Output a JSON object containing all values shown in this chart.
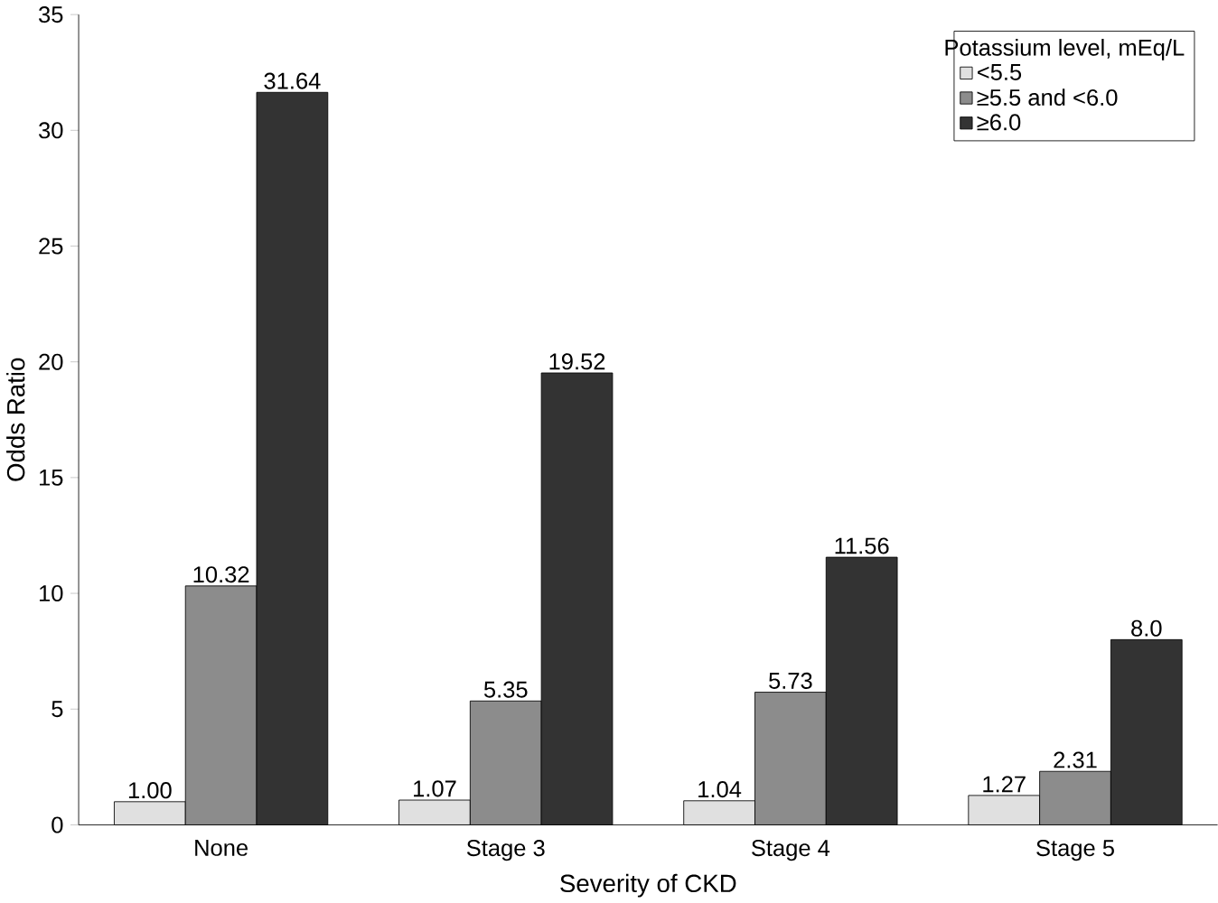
{
  "chart_data": {
    "type": "bar",
    "xlabel": "Severity of CKD",
    "ylabel": "Odds Ratio",
    "legend_title": "Potassium level, mEq/L",
    "categories": [
      "None",
      "Stage 3",
      "Stage 4",
      "Stage 5"
    ],
    "series": [
      {
        "name": "<5.5",
        "color": "#e0e0e0",
        "values": [
          1.0,
          1.07,
          1.04,
          1.27
        ],
        "value_labels": [
          "1.00",
          "1.07",
          "1.04",
          "1.27"
        ]
      },
      {
        "name": "≥5.5 and <6.0",
        "color": "#8c8c8c",
        "values": [
          10.32,
          5.35,
          5.73,
          2.31
        ],
        "value_labels": [
          "10.32",
          "5.35",
          "5.73",
          "2.31"
        ]
      },
      {
        "name": "≥6.0",
        "color": "#333333",
        "values": [
          31.64,
          19.52,
          11.56,
          8.0
        ],
        "value_labels": [
          "31.64",
          "19.52",
          "11.56",
          "8.0"
        ]
      }
    ],
    "ylim": [
      0,
      35
    ],
    "yticks": [
      0,
      5,
      10,
      15,
      20,
      25,
      30,
      35
    ],
    "grid": false,
    "legend": "top right"
  }
}
